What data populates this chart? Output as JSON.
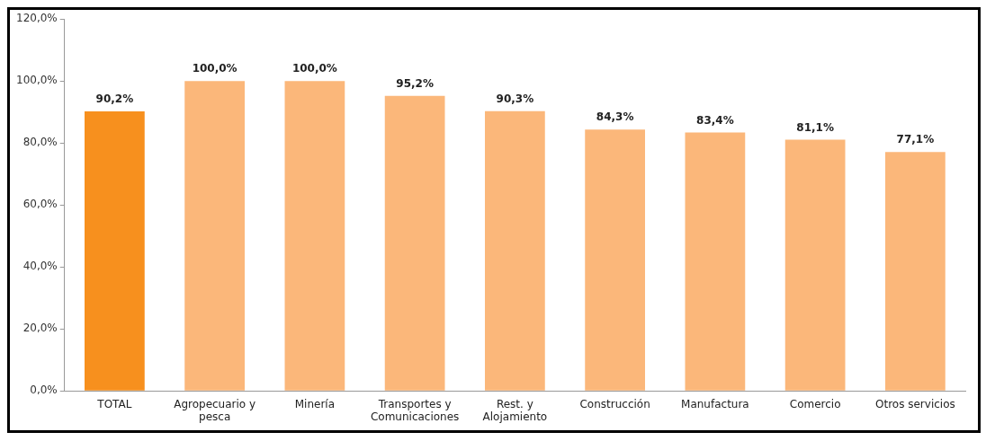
{
  "chart_data": {
    "type": "bar",
    "categories": [
      "TOTAL",
      "Agropecuario y pesca",
      "Minería",
      "Transportes y Comunicaciones",
      "Rest. y Alojamiento",
      "Construcción",
      "Manufactura",
      "Comercio",
      "Otros servicios"
    ],
    "values": [
      90.2,
      100.0,
      100.0,
      95.2,
      90.3,
      84.3,
      83.4,
      81.1,
      77.1
    ],
    "colors": [
      "#f7901e",
      "#fbb77a",
      "#fbb77a",
      "#fbb77a",
      "#fbb77a",
      "#fbb77a",
      "#fbb77a",
      "#fbb77a",
      "#fbb77a"
    ],
    "value_labels": [
      "90,2%",
      "100,0%",
      "100,0%",
      "95,2%",
      "90,3%",
      "84,3%",
      "83,4%",
      "81,1%",
      "77,1%"
    ],
    "ylim": [
      0,
      120
    ],
    "yticks": [
      {
        "value": 0,
        "label": "0,0%"
      },
      {
        "value": 20,
        "label": "20,0%"
      },
      {
        "value": 40,
        "label": "40,0%"
      },
      {
        "value": 60,
        "label": "60,0%"
      },
      {
        "value": 80,
        "label": "80,0%"
      },
      {
        "value": 100,
        "label": "100,0%"
      },
      {
        "value": 120,
        "label": "120,0%"
      }
    ],
    "grid": false,
    "legend": false
  }
}
